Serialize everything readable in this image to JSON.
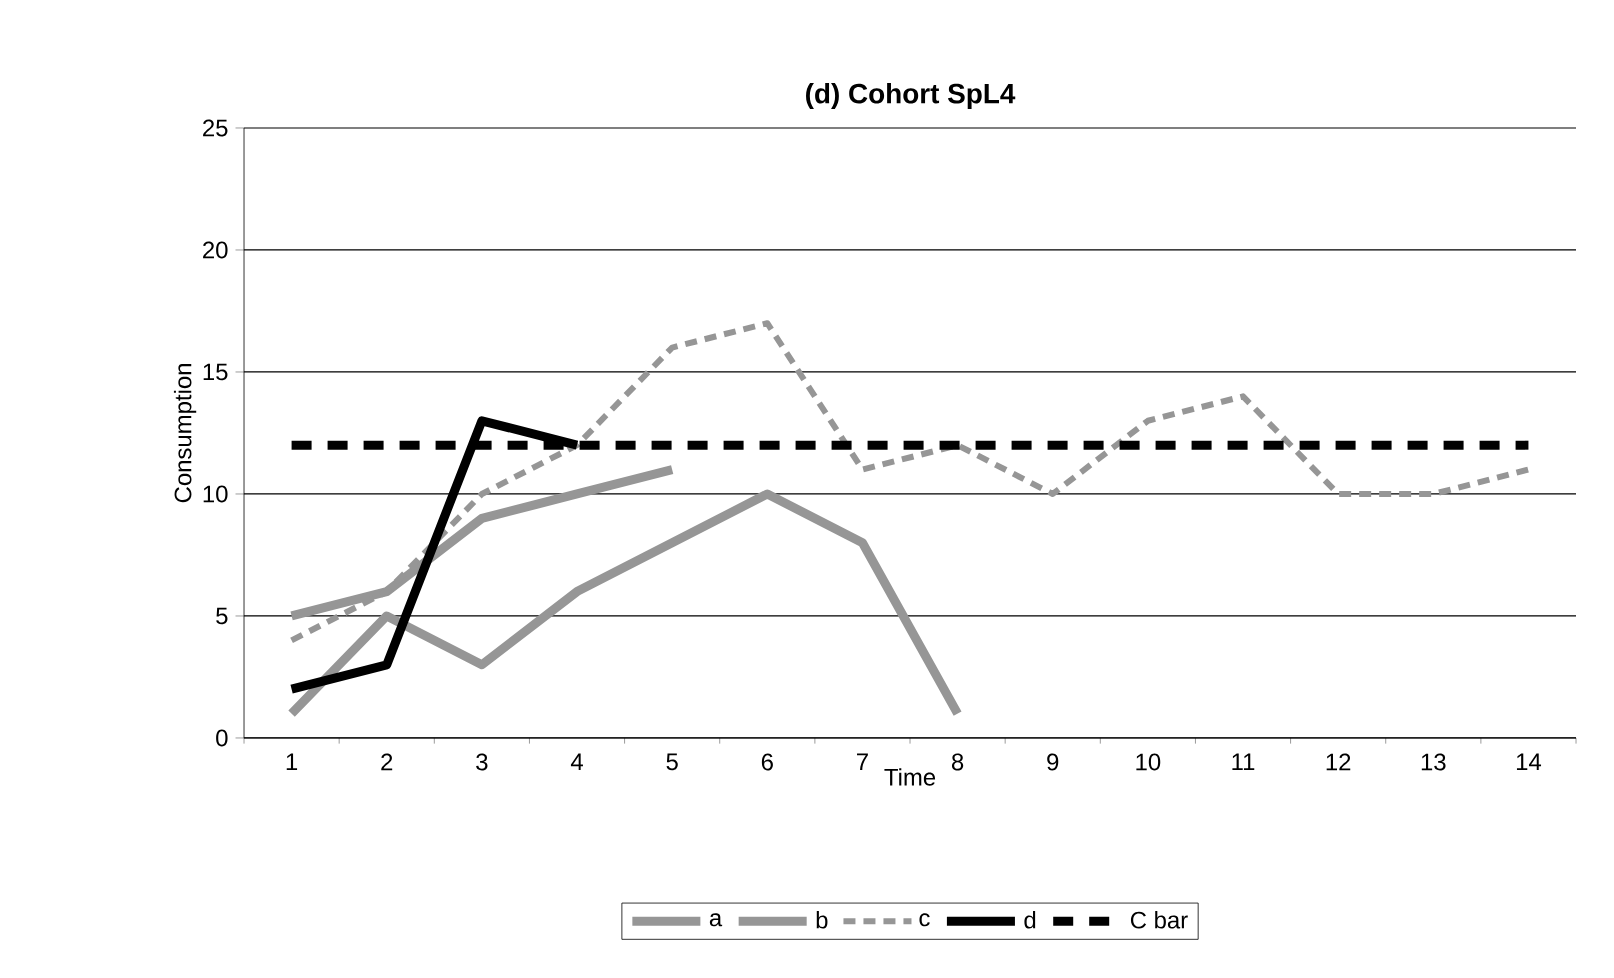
{
  "chart_data": {
    "type": "line",
    "title": "(d) Cohort SpL4",
    "xlabel": "Time",
    "ylabel": "Consumption",
    "categories": [
      "1",
      "2",
      "3",
      "4",
      "5",
      "6",
      "7",
      "8",
      "9",
      "10",
      "11",
      "12",
      "13",
      "14"
    ],
    "series": [
      {
        "name": "a",
        "color": "#969696",
        "line_style": "solid",
        "values": [
          1,
          5,
          3,
          6,
          8,
          10,
          8,
          1,
          null,
          null,
          null,
          null,
          null,
          null
        ]
      },
      {
        "name": "b",
        "color": "#969696",
        "line_style": "solid",
        "values": [
          5,
          6,
          9,
          10,
          11,
          null,
          null,
          null,
          null,
          null,
          null,
          null,
          null,
          null
        ]
      },
      {
        "name": "c",
        "color": "#969696",
        "line_style": "dashed",
        "values": [
          4,
          6,
          10,
          12,
          16,
          17,
          11,
          12,
          10,
          13,
          14,
          10,
          10,
          11
        ]
      },
      {
        "name": "d",
        "color": "#000000",
        "line_style": "solid",
        "values": [
          2,
          3,
          13,
          12,
          null,
          null,
          null,
          null,
          null,
          null,
          null,
          null,
          null,
          null
        ]
      },
      {
        "name": "C bar",
        "color": "#000000",
        "line_style": "dashed",
        "values": [
          12,
          12,
          12,
          12,
          12,
          12,
          12,
          12,
          12,
          12,
          12,
          12,
          12,
          12
        ]
      }
    ],
    "ylim": [
      0,
      25
    ],
    "yticks": [
      0,
      5,
      10,
      15,
      20,
      25
    ],
    "grid": "y",
    "legend": "bottom",
    "marker": "none"
  }
}
